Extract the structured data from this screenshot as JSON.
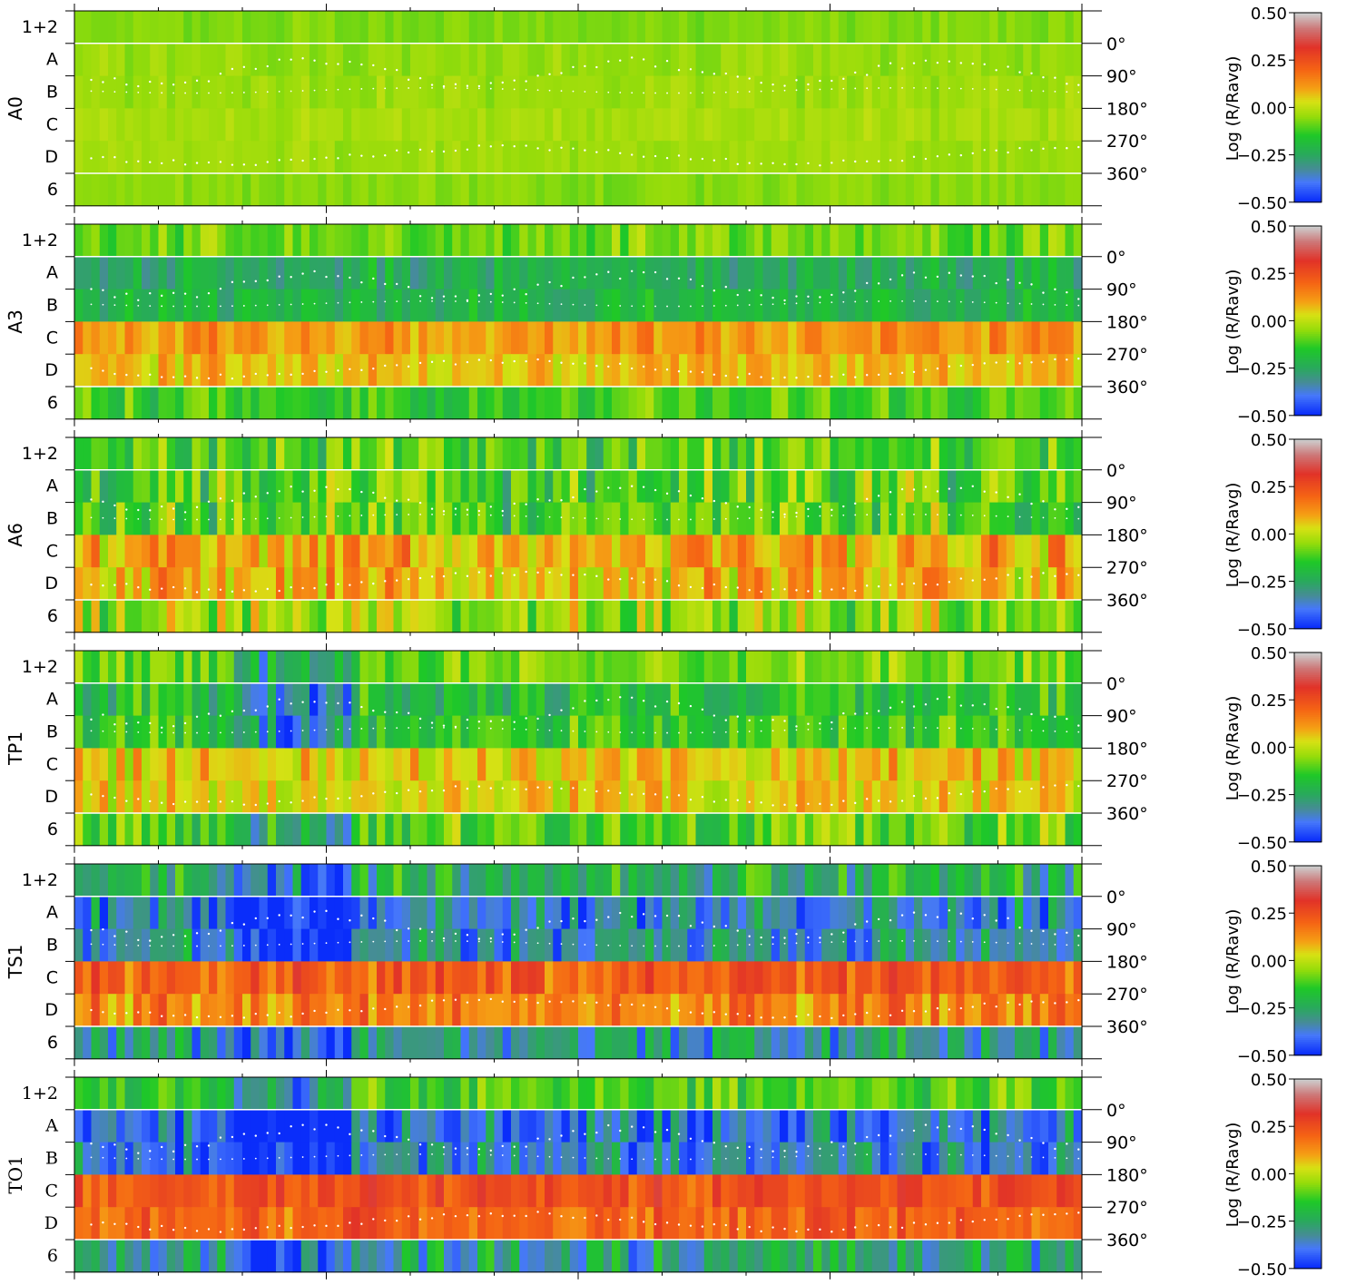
{
  "chart_data": {
    "type": "heatmap",
    "n_columns": 120,
    "row_labels": [
      "1+2",
      "A",
      "B",
      "C",
      "D",
      "6"
    ],
    "angle_labels": [
      "0°",
      "90°",
      "180°",
      "270°",
      "360°"
    ],
    "colorbar": {
      "label": "Log (R/Ravg)",
      "ticks": [
        "0.50",
        "0.25",
        "0.00",
        "−0.25",
        "−0.50"
      ],
      "range": [
        -0.5,
        0.5
      ]
    },
    "panels": [
      {
        "name": "A0",
        "row_means": [
          -0.07,
          -0.05,
          -0.04,
          -0.03,
          -0.04,
          -0.06
        ],
        "row_variation": [
          0.025,
          0.03,
          0.03,
          0.025,
          0.025,
          0.025
        ]
      },
      {
        "name": "A3",
        "row_means": [
          -0.08,
          -0.24,
          -0.22,
          0.12,
          0.07,
          -0.13
        ],
        "row_variation": [
          0.07,
          0.08,
          0.07,
          0.07,
          0.07,
          0.09
        ]
      },
      {
        "name": "A6",
        "row_means": [
          -0.12,
          -0.12,
          -0.12,
          0.08,
          0.07,
          -0.05
        ],
        "row_variation": [
          0.12,
          0.14,
          0.14,
          0.13,
          0.12,
          0.13
        ]
      },
      {
        "name": "TP1",
        "row_means": [
          -0.08,
          -0.18,
          -0.14,
          0.05,
          0.05,
          -0.1
        ],
        "row_variation": [
          0.09,
          0.1,
          0.1,
          0.1,
          0.09,
          0.11
        ]
      },
      {
        "name": "TS1",
        "row_means": [
          -0.22,
          -0.36,
          -0.34,
          0.22,
          0.15,
          -0.3
        ],
        "row_variation": [
          0.13,
          0.14,
          0.13,
          0.1,
          0.11,
          0.14
        ]
      },
      {
        "name": "TO1",
        "row_means": [
          -0.12,
          -0.38,
          -0.36,
          0.24,
          0.2,
          -0.28
        ],
        "row_variation": [
          0.1,
          0.14,
          0.13,
          0.08,
          0.09,
          0.13
        ]
      }
    ]
  }
}
